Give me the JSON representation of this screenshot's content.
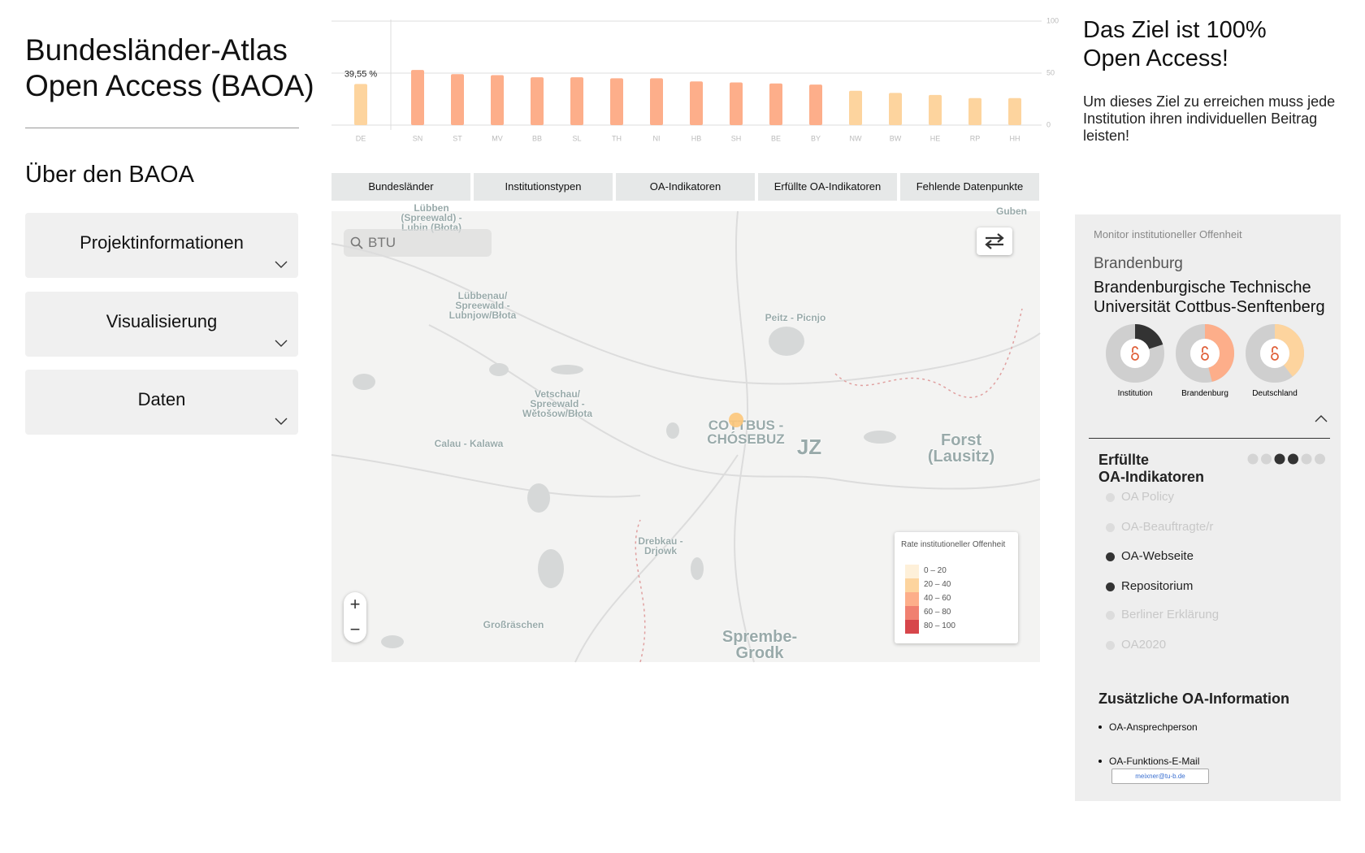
{
  "sidebar": {
    "title": "Bundesländer-Atlas\nOpen Access (BAOA)",
    "about": "Über den BAOA",
    "accordion": [
      "Projektinformationen",
      "Visualisierung",
      "Daten"
    ]
  },
  "chart_data": {
    "type": "bar",
    "categories": [
      "DE",
      "SN",
      "ST",
      "MV",
      "BB",
      "SL",
      "TH",
      "NI",
      "HB",
      "SH",
      "BE",
      "BY",
      "NW",
      "BW",
      "HE",
      "RP",
      "HH"
    ],
    "values": [
      39.55,
      53,
      49,
      48,
      46,
      46,
      45,
      45,
      42,
      41,
      40,
      39,
      33,
      31,
      29,
      26,
      26
    ],
    "value_labels": [
      "39,55 %",
      null,
      null,
      null,
      null,
      null,
      null,
      null,
      null,
      null,
      null,
      null,
      null,
      null,
      null,
      null,
      null
    ],
    "colors": [
      "#fdd49e",
      "#fdae8a",
      "#fdae8a",
      "#fdae8a",
      "#fdae8a",
      "#fdae8a",
      "#fdae8a",
      "#fdae8a",
      "#fdae8a",
      "#fdae8a",
      "#fdae8a",
      "#fdae8a",
      "#fdd49e",
      "#fdd49e",
      "#fdd49e",
      "#fdd49e",
      "#fdd49e"
    ],
    "ylim": [
      0,
      100
    ],
    "yticks": [
      0,
      50,
      100
    ],
    "grid": true
  },
  "tabs": [
    "Bundesländer",
    "Institutionstypen",
    "OA-Indikatoren",
    "Erfüllte OA-Indikatoren",
    "Fehlende Datenpunkte"
  ],
  "map": {
    "search": "BTU",
    "zoom_in": "+",
    "zoom_out": "−",
    "labels": [
      "Lübben\n(Spreewald) -\nLubin (Błota)",
      "Guben",
      "Lübbenau/\nSpreewald -\nLubnjow/Błota",
      "Peitz - Picnjo",
      "Vetschau/\nSpreewald -\nWětošow/Błota",
      "Calau - Kalawa",
      "COTTBUS -\nCHÓSEBUZ",
      "JZ",
      "Forst (Lausitz)",
      "Drebkau -\nDrjowk",
      "Großräschen",
      "Sprembe-\nGrodk"
    ],
    "legend": {
      "title": "Rate institutioneller Offenheit",
      "items": [
        {
          "label": "0 – 20",
          "color": "#fef0d9"
        },
        {
          "label": "20 – 40",
          "color": "#fdd49e"
        },
        {
          "label": "40 – 60",
          "color": "#fdae8a"
        },
        {
          "label": "60 – 80",
          "color": "#f08070"
        },
        {
          "label": "80 – 100",
          "color": "#d7464b"
        }
      ]
    }
  },
  "goal": {
    "title": "Das Ziel ist 100%\nOpen Access!",
    "text": "Um dieses Ziel zu erreichen muss jede Institution ihren individuellen Beitrag leisten!"
  },
  "monitor": {
    "heading": "Monitor institutioneller Offenheit",
    "state": "Brandenburg",
    "institution": "Brandenburgische Technische\nUniversität Cottbus-Senftenberg",
    "donuts": [
      {
        "label": "Institution",
        "value": 20,
        "color": "#333333"
      },
      {
        "label": "Brandenburg",
        "value": 46,
        "color": "#fdae8a"
      },
      {
        "label": "Deutschland",
        "value": 39.55,
        "color": "#fdd49e"
      }
    ],
    "indicators_title": "Erfüllte\nOA-Indikatoren",
    "indicators": [
      {
        "label": "OA Policy",
        "fulfilled": false
      },
      {
        "label": "OA-Beauftragte/r",
        "fulfilled": false
      },
      {
        "label": "OA-Webseite",
        "fulfilled": true
      },
      {
        "label": "Repositorium",
        "fulfilled": true
      },
      {
        "label": "Berliner Erklärung",
        "fulfilled": false
      },
      {
        "label": "OA2020",
        "fulfilled": false
      }
    ],
    "additional_title": "Zusätzliche OA-Information",
    "additional": [
      "OA-Ansprechperson",
      "OA-Funktions-E-Mail"
    ],
    "email": "meixner@tu-b.de"
  }
}
